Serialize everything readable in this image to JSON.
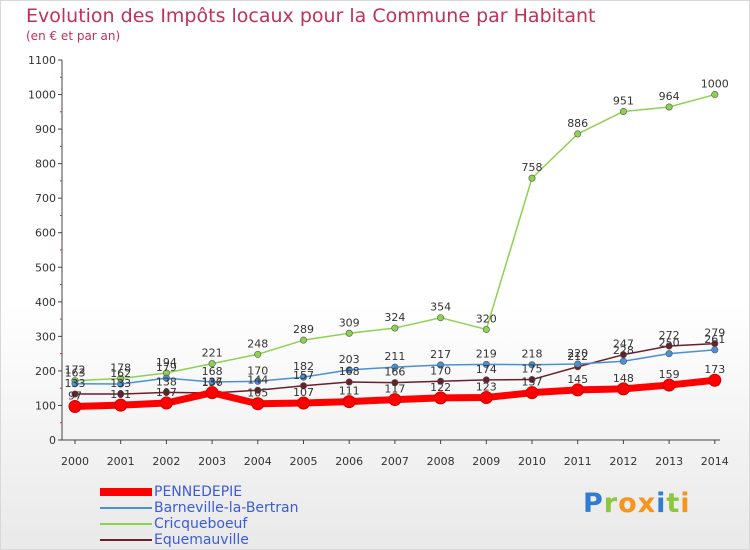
{
  "header": {
    "title": "Evolution des Impôts locaux pour la Commune par Habitant",
    "subtitle": "(en € et par an)"
  },
  "brand": {
    "text": "Proxiti",
    "letters": [
      {
        "ch": "P",
        "color": "#2e7dd1"
      },
      {
        "ch": "r",
        "color": "#8dc63f"
      },
      {
        "ch": "o",
        "color": "#f7941d"
      },
      {
        "ch": "x",
        "color": "#f7941d"
      },
      {
        "ch": "i",
        "color": "#2e7dd1"
      },
      {
        "ch": "t",
        "color": "#8dc63f"
      },
      {
        "ch": "i",
        "color": "#f7941d"
      }
    ]
  },
  "chart_data": {
    "type": "line",
    "title": "Evolution des Impôts locaux pour la Commune par Habitant",
    "subtitle": "(en € et par an)",
    "x": [
      "2000",
      "2001",
      "2002",
      "2003",
      "2004",
      "2005",
      "2006",
      "2007",
      "2008",
      "2009",
      "2010",
      "2011",
      "2012",
      "2013",
      "2014"
    ],
    "ylim": [
      0,
      1100
    ],
    "yticks": [
      0,
      100,
      200,
      300,
      400,
      500,
      600,
      700,
      800,
      900,
      1000,
      1100
    ],
    "grid": false,
    "legend_position": "bottom-left",
    "series": [
      {
        "name": "PENNEDEPIE",
        "color": "#ff0000",
        "values": [
          97,
          101,
          107,
          137,
          105,
          107,
          111,
          117,
          122,
          123,
          137,
          145,
          148,
          159,
          173
        ],
        "labels": [
          97,
          101,
          107,
          137,
          105,
          107,
          111,
          117,
          122,
          123,
          137,
          145,
          148,
          159,
          173
        ]
      },
      {
        "name": "Barneville-la-Bertran",
        "color": "#4a90d9",
        "values": [
          163,
          162,
          179,
          168,
          170,
          182,
          203,
          211,
          217,
          219,
          218,
          220,
          228,
          250,
          261
        ],
        "labels": [
          163,
          162,
          179,
          168,
          170,
          182,
          203,
          211,
          217,
          219,
          218,
          220,
          228,
          250,
          261
        ]
      },
      {
        "name": "Cricqueboeuf",
        "color": "#8ed150",
        "values": [
          172,
          178,
          194,
          221,
          248,
          289,
          309,
          324,
          354,
          320,
          758,
          886,
          951,
          964,
          1000
        ],
        "labels": [
          172,
          178,
          194,
          221,
          248,
          289,
          309,
          324,
          354,
          320,
          758,
          886,
          951,
          964,
          1000
        ]
      },
      {
        "name": "Equemauville",
        "color": "#6b1f2a",
        "values": [
          133,
          133,
          138,
          136,
          144,
          157,
          168,
          166,
          170,
          174,
          175,
          212,
          247,
          272,
          279
        ],
        "labels": [
          133,
          133,
          138,
          136,
          144,
          157,
          168,
          166,
          170,
          174,
          175,
          212,
          247,
          272,
          279
        ]
      }
    ]
  }
}
